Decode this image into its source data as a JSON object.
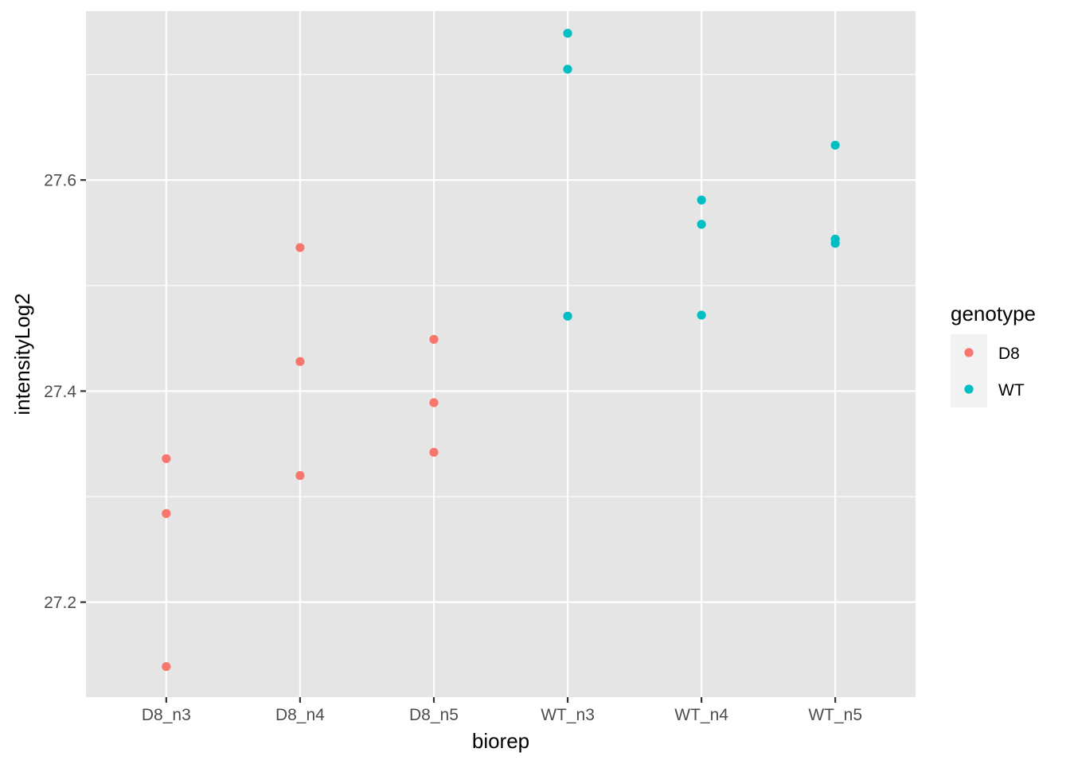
{
  "chart_data": {
    "type": "scatter",
    "xlabel": "biorep",
    "ylabel": "intensityLog2",
    "categories": [
      "D8_n3",
      "D8_n4",
      "D8_n5",
      "WT_n3",
      "WT_n4",
      "WT_n5"
    ],
    "ylim": [
      27.11,
      27.76
    ],
    "yticks": [
      27.2,
      27.4,
      27.6
    ],
    "ytick_labels": [
      "27.2",
      "27.4",
      "27.6"
    ],
    "grid": true,
    "legend": {
      "title": "genotype",
      "position": "right",
      "entries": [
        "D8",
        "WT"
      ]
    },
    "series": [
      {
        "name": "D8",
        "color": "#F8766D",
        "points": [
          {
            "x": "D8_n3",
            "y": 27.336
          },
          {
            "x": "D8_n3",
            "y": 27.284
          },
          {
            "x": "D8_n3",
            "y": 27.139
          },
          {
            "x": "D8_n4",
            "y": 27.536
          },
          {
            "x": "D8_n4",
            "y": 27.428
          },
          {
            "x": "D8_n4",
            "y": 27.32
          },
          {
            "x": "D8_n5",
            "y": 27.449
          },
          {
            "x": "D8_n5",
            "y": 27.389
          },
          {
            "x": "D8_n5",
            "y": 27.342
          }
        ]
      },
      {
        "name": "WT",
        "color": "#00BFC4",
        "points": [
          {
            "x": "WT_n3",
            "y": 27.739
          },
          {
            "x": "WT_n3",
            "y": 27.705
          },
          {
            "x": "WT_n3",
            "y": 27.471
          },
          {
            "x": "WT_n4",
            "y": 27.581
          },
          {
            "x": "WT_n4",
            "y": 27.558
          },
          {
            "x": "WT_n4",
            "y": 27.472
          },
          {
            "x": "WT_n5",
            "y": 27.633
          },
          {
            "x": "WT_n5",
            "y": 27.544
          },
          {
            "x": "WT_n5",
            "y": 27.54
          }
        ]
      }
    ]
  }
}
